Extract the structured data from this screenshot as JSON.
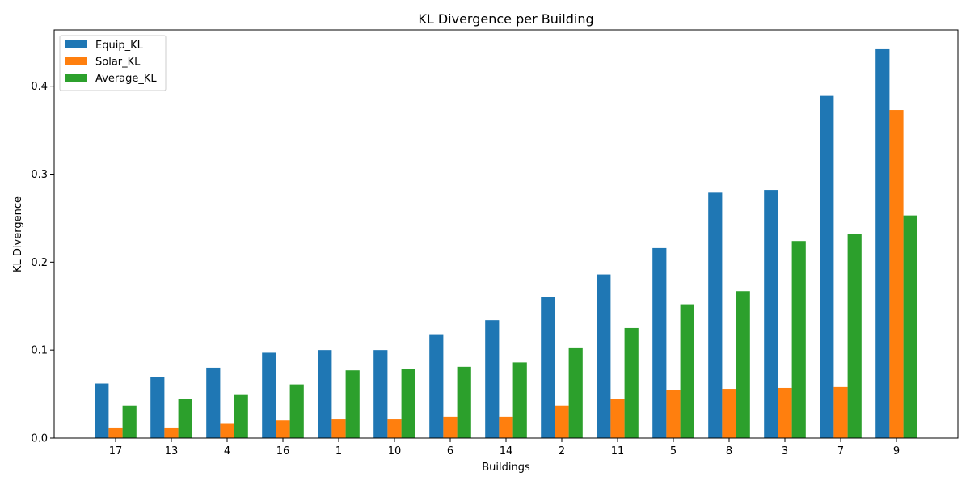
{
  "chart_data": {
    "type": "bar",
    "title": "KL Divergence per Building",
    "xlabel": "Buildings",
    "ylabel": "KL Divergence",
    "categories": [
      "17",
      "13",
      "4",
      "16",
      "1",
      "10",
      "6",
      "14",
      "2",
      "11",
      "5",
      "8",
      "3",
      "7",
      "9"
    ],
    "series": [
      {
        "name": "Equip_KL",
        "color": "#1f77b4",
        "values": [
          0.062,
          0.069,
          0.08,
          0.097,
          0.1,
          0.1,
          0.118,
          0.134,
          0.16,
          0.186,
          0.216,
          0.279,
          0.282,
          0.389,
          0.442
        ]
      },
      {
        "name": "Solar_KL",
        "color": "#ff7f0e",
        "values": [
          0.012,
          0.012,
          0.017,
          0.02,
          0.022,
          0.022,
          0.024,
          0.024,
          0.037,
          0.045,
          0.055,
          0.056,
          0.057,
          0.058,
          0.373
        ]
      },
      {
        "name": "Average_KL",
        "color": "#2ca02c",
        "values": [
          0.037,
          0.045,
          0.049,
          0.061,
          0.077,
          0.079,
          0.081,
          0.086,
          0.103,
          0.125,
          0.152,
          0.167,
          0.224,
          0.232,
          0.253
        ]
      }
    ],
    "yticks": [
      0.0,
      0.1,
      0.2,
      0.3,
      0.4
    ],
    "ytick_labels": [
      "0.0",
      "0.1",
      "0.2",
      "0.3",
      "0.4"
    ],
    "ylim": [
      0,
      0.464
    ],
    "grid": false,
    "legend": "top-left"
  }
}
